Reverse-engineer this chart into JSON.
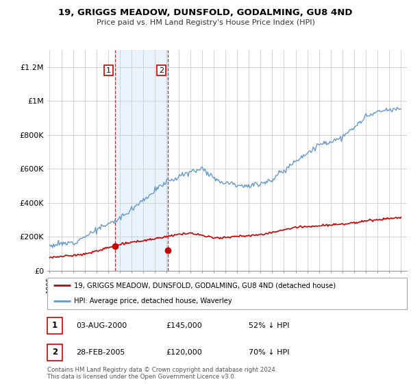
{
  "title": "19, GRIGGS MEADOW, DUNSFOLD, GODALMING, GU8 4ND",
  "subtitle": "Price paid vs. HM Land Registry's House Price Index (HPI)",
  "transaction_labels": [
    "1",
    "2"
  ],
  "transaction_dates_str": [
    "03-AUG-2000",
    "28-FEB-2005"
  ],
  "transaction_prices_str": [
    "£145,000",
    "£120,000"
  ],
  "transaction_pct_str": [
    "52% ↓ HPI",
    "70% ↓ HPI"
  ],
  "transaction_dates_float": [
    2000.583,
    2005.083
  ],
  "transaction_prices": [
    145000,
    120000
  ],
  "legend_line1": "19, GRIGGS MEADOW, DUNSFOLD, GODALMING, GU8 4ND (detached house)",
  "legend_line2": "HPI: Average price, detached house, Waverley",
  "footer": "Contains HM Land Registry data © Crown copyright and database right 2024.\nThis data is licensed under the Open Government Licence v3.0.",
  "ylim": [
    0,
    1300000
  ],
  "yticks": [
    0,
    200000,
    400000,
    600000,
    800000,
    1000000,
    1200000
  ],
  "ytick_labels": [
    "£0",
    "£200K",
    "£400K",
    "£600K",
    "£800K",
    "£1M",
    "£1.2M"
  ],
  "hpi_color": "#6699cc",
  "price_color": "#cc0000",
  "vline_color": "#cc0000",
  "bg_fill_color": "#ddeeff",
  "label_box_color": "#cc0000",
  "hpi_seed": 12,
  "price_seed": 37
}
